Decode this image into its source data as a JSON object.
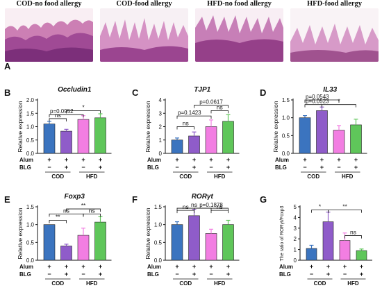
{
  "panel_a": {
    "letter": "A",
    "images": [
      {
        "title": "COD-no food allergy"
      },
      {
        "title": "COD-food allergy"
      },
      {
        "title": "HFD-no food allergy"
      },
      {
        "title": "HFD-food allergy"
      }
    ]
  },
  "legend_rows": {
    "alum": "Alum",
    "blg": "BLG"
  },
  "group_labels": {
    "cod": "COD",
    "hfd": "HFD"
  },
  "colors": {
    "g1": "#3b74bf",
    "g2": "#8f5cc9",
    "g3": "#f27ee2",
    "g4": "#5fc65a"
  },
  "chart_data": [
    {
      "panel": "B",
      "type": "bar",
      "title": "Occludin1",
      "ylabel": "Relative expression",
      "categories": [
        "COD Alum+ BLG-",
        "COD Alum+ BLG+",
        "HFD Alum+ BLG-",
        "HFD Alum+ BLG+"
      ],
      "values": [
        1.1,
        0.83,
        1.27,
        1.33
      ],
      "errors": [
        0.1,
        0.07,
        0.14,
        0.15
      ],
      "ylim": [
        0,
        2.0
      ],
      "yticks": [
        "0.0",
        "0.5",
        "1.0",
        "1.5",
        "2.0"
      ],
      "yticks_v": [
        0,
        0.5,
        1.0,
        1.5,
        2.0
      ],
      "annotations": [
        {
          "text": "ns",
          "i": 0,
          "j": 1,
          "y": 1.3
        },
        {
          "text": "p=0.0952",
          "i": 0,
          "j": 2,
          "y": 1.45
        },
        {
          "text": "*",
          "i": 1,
          "j": 3,
          "y": 1.6
        }
      ]
    },
    {
      "panel": "C",
      "type": "bar",
      "title": "TJP1",
      "ylabel": "Relative expression",
      "categories": [
        "COD Alum+ BLG-",
        "COD Alum+ BLG+",
        "HFD Alum+ BLG-",
        "HFD Alum+ BLG+"
      ],
      "values": [
        1.0,
        1.3,
        2.0,
        2.4
      ],
      "errors": [
        0.15,
        0.3,
        0.5,
        0.5
      ],
      "ylim": [
        0,
        4
      ],
      "yticks": [
        "0",
        "1",
        "2",
        "3",
        "4"
      ],
      "yticks_v": [
        0,
        1,
        2,
        3,
        4
      ],
      "annotations": [
        {
          "text": "ns",
          "i": 0,
          "j": 1,
          "y": 2.0
        },
        {
          "text": "p=0.1423",
          "i": 0,
          "j": 2,
          "y": 2.8
        },
        {
          "text": "ns",
          "i": 2,
          "j": 3,
          "y": 3.2
        },
        {
          "text": "p=0.0617",
          "i": 1,
          "j": 3,
          "y": 3.6
        }
      ]
    },
    {
      "panel": "D",
      "type": "bar",
      "title": "IL33",
      "ylabel": "Relative expression",
      "categories": [
        "COD Alum+ BLG-",
        "COD Alum+ BLG+",
        "HFD Alum+ BLG-",
        "HFD Alum+ BLG+"
      ],
      "values": [
        1.0,
        1.2,
        0.65,
        0.8
      ],
      "errors": [
        0.06,
        0.1,
        0.13,
        0.16
      ],
      "ylim": [
        0,
        1.5
      ],
      "yticks": [
        "0.0",
        "0.5",
        "1.0",
        "1.5"
      ],
      "yticks_v": [
        0,
        0.5,
        1.0,
        1.5
      ],
      "annotations": [
        {
          "text": "p=0.0523",
          "i": 0,
          "j": 1,
          "y": 1.37
        },
        {
          "text": "*",
          "i": 1,
          "j": 3,
          "y": 1.37
        },
        {
          "text": "p=0.0543",
          "i": 0,
          "j": 2,
          "y": 1.5
        }
      ]
    },
    {
      "panel": "E",
      "type": "bar",
      "title": "Foxp3",
      "ylabel": "Relative expression",
      "categories": [
        "COD Alum+ BLG-",
        "COD Alum+ BLG+",
        "HFD Alum+ BLG-",
        "HFD Alum+ BLG+"
      ],
      "values": [
        1.0,
        0.4,
        0.7,
        1.07
      ],
      "errors": [
        0.0,
        0.05,
        0.2,
        0.16
      ],
      "ylim": [
        0,
        1.5
      ],
      "yticks": [
        "0.0",
        "0.5",
        "1.0",
        "1.5"
      ],
      "yticks_v": [
        0,
        0.5,
        1.0,
        1.5
      ],
      "annotations": [
        {
          "text": "**",
          "i": 0,
          "j": 1,
          "y": 1.12
        },
        {
          "text": "ns",
          "i": 0,
          "j": 2,
          "y": 1.3
        },
        {
          "text": "ns",
          "i": 2,
          "j": 3,
          "y": 1.3
        },
        {
          "text": "**",
          "i": 1,
          "j": 3,
          "y": 1.44
        }
      ]
    },
    {
      "panel": "F",
      "type": "bar",
      "title": "RORγt",
      "ylabel": "Relative expression",
      "categories": [
        "COD Alum+ BLG-",
        "COD Alum+ BLG+",
        "HFD Alum+ BLG-",
        "HFD Alum+ BLG+"
      ],
      "values": [
        1.0,
        1.25,
        0.75,
        1.0
      ],
      "errors": [
        0.08,
        0.18,
        0.12,
        0.12
      ],
      "ylim": [
        0,
        1.5
      ],
      "yticks": [
        "0.0",
        "0.5",
        "1.0",
        "1.5"
      ],
      "yticks_v": [
        0,
        0.5,
        1.0,
        1.5
      ],
      "annotations": [
        {
          "text": "ns",
          "i": 0,
          "j": 1,
          "y": 1.4
        },
        {
          "text": "ns",
          "i": 2,
          "j": 3,
          "y": 1.4
        },
        {
          "text": "ns",
          "i": 0,
          "j": 2,
          "y": 1.46
        },
        {
          "text": "p=0.1878",
          "i": 1,
          "j": 3,
          "y": 1.46
        }
      ]
    },
    {
      "panel": "G",
      "type": "bar",
      "title": "",
      "ylabel": "The ratio of RORγt/Foxp3",
      "categories": [
        "COD Alum+ BLG-",
        "COD Alum+ BLG+",
        "HFD Alum+ BLG-",
        "HFD Alum+ BLG+"
      ],
      "values": [
        1.1,
        3.6,
        1.85,
        0.9
      ],
      "errors": [
        0.3,
        0.9,
        0.7,
        0.15
      ],
      "ylim": [
        0,
        5
      ],
      "yticks": [
        "0",
        "1",
        "2",
        "3",
        "4",
        "5"
      ],
      "yticks_v": [
        0,
        1,
        2,
        3,
        4,
        5
      ],
      "annotations": [
        {
          "text": "*",
          "i": 0,
          "j": 1,
          "y": 4.7
        },
        {
          "text": "**",
          "i": 1,
          "j": 3,
          "y": 4.7
        },
        {
          "text": "ns",
          "i": 2,
          "j": 3,
          "y": 2.3
        }
      ]
    }
  ]
}
